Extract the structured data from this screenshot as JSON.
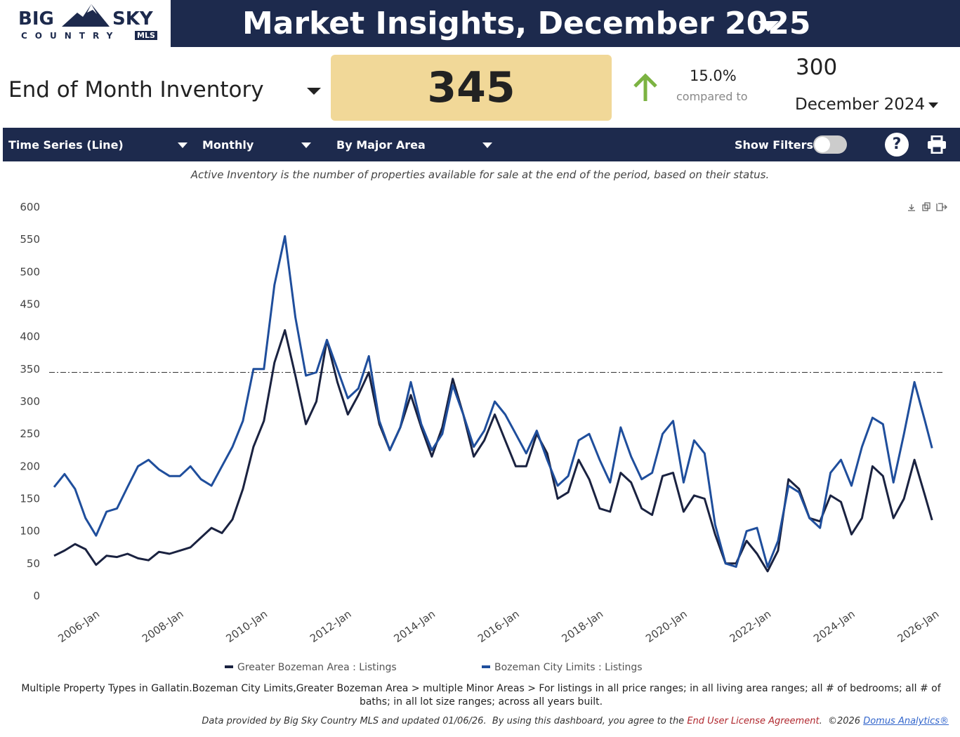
{
  "header": {
    "logo": {
      "big": "BIG",
      "sky": "SKY",
      "country": "COUNTRY",
      "mls": "MLS"
    },
    "title": "Market Insights, December 2025"
  },
  "kpi": {
    "metric": "End of Month Inventory",
    "value": 345,
    "change": "15.0%",
    "compared_to": "compared to",
    "previous_value": 300,
    "previous_period": "December 2024"
  },
  "toolbar": {
    "chart_type": "Time Series (Line)",
    "interval": "Monthly",
    "grouping": "By Major Area",
    "show_filters": "Show Filters:"
  },
  "description": "Active Inventory is the number of properties available for sale at the end of the period, based on their status.",
  "chart_data": {
    "type": "line",
    "x": [
      2005,
      2005.25,
      2005.5,
      2005.75,
      2006,
      2006.25,
      2006.5,
      2006.75,
      2007,
      2007.25,
      2007.5,
      2007.75,
      2008,
      2008.25,
      2008.5,
      2008.75,
      2009,
      2009.25,
      2009.5,
      2009.75,
      2010,
      2010.25,
      2010.5,
      2010.75,
      2011,
      2011.25,
      2011.5,
      2011.75,
      2012,
      2012.25,
      2012.5,
      2012.75,
      2013,
      2013.25,
      2013.5,
      2013.75,
      2014,
      2014.25,
      2014.5,
      2014.75,
      2015,
      2015.25,
      2015.5,
      2015.75,
      2016,
      2016.25,
      2016.5,
      2016.75,
      2017,
      2017.25,
      2017.5,
      2017.75,
      2018,
      2018.25,
      2018.5,
      2018.75,
      2019,
      2019.25,
      2019.5,
      2019.75,
      2020,
      2020.25,
      2020.5,
      2020.75,
      2021,
      2021.25,
      2021.5,
      2021.75,
      2022,
      2022.25,
      2022.5,
      2022.75,
      2023,
      2023.25,
      2023.5,
      2023.75,
      2024,
      2024.25,
      2024.5,
      2024.75,
      2025,
      2025.25,
      2025.5,
      2025.75,
      2025.92
    ],
    "series": [
      {
        "name": "Greater Bozeman Area : Listings",
        "color": "#1a2240",
        "values": [
          62,
          70,
          80,
          72,
          48,
          62,
          60,
          65,
          58,
          55,
          68,
          65,
          70,
          75,
          90,
          105,
          97,
          118,
          165,
          230,
          270,
          360,
          410,
          340,
          265,
          300,
          395,
          330,
          280,
          310,
          345,
          265,
          225,
          260,
          310,
          260,
          215,
          260,
          335,
          280,
          215,
          240,
          280,
          240,
          200,
          200,
          250,
          220,
          150,
          160,
          210,
          180,
          135,
          130,
          190,
          175,
          135,
          125,
          185,
          190,
          130,
          155,
          150,
          95,
          50,
          50,
          85,
          65,
          38,
          70,
          180,
          165,
          120,
          115,
          155,
          145,
          95,
          120,
          200,
          185,
          120,
          150,
          210,
          155,
          117
        ]
      },
      {
        "name": "Bozeman City Limits : Listings",
        "color": "#1f4e9c",
        "values": [
          168,
          188,
          165,
          120,
          93,
          130,
          135,
          168,
          200,
          210,
          195,
          185,
          185,
          200,
          180,
          170,
          200,
          230,
          270,
          350,
          350,
          480,
          555,
          430,
          340,
          345,
          395,
          350,
          305,
          320,
          370,
          270,
          225,
          260,
          330,
          265,
          225,
          250,
          325,
          280,
          230,
          255,
          300,
          280,
          250,
          220,
          255,
          210,
          170,
          185,
          240,
          250,
          210,
          175,
          260,
          215,
          180,
          190,
          250,
          270,
          175,
          240,
          220,
          110,
          50,
          45,
          100,
          105,
          45,
          85,
          170,
          160,
          120,
          105,
          190,
          210,
          170,
          230,
          275,
          265,
          175,
          250,
          330,
          270,
          228
        ]
      }
    ],
    "xlim": [
      2005,
      2026
    ],
    "xticks": [
      {
        "value": 2006,
        "label": "2006-Jan"
      },
      {
        "value": 2008,
        "label": "2008-Jan"
      },
      {
        "value": 2010,
        "label": "2010-Jan"
      },
      {
        "value": 2012,
        "label": "2012-Jan"
      },
      {
        "value": 2014,
        "label": "2014-Jan"
      },
      {
        "value": 2016,
        "label": "2016-Jan"
      },
      {
        "value": 2018,
        "label": "2018-Jan"
      },
      {
        "value": 2020,
        "label": "2020-Jan"
      },
      {
        "value": 2022,
        "label": "2022-Jan"
      },
      {
        "value": 2024,
        "label": "2024-Jan"
      },
      {
        "value": 2026,
        "label": "2026-Jan"
      }
    ],
    "ylim": [
      0,
      600
    ],
    "yticks": [
      0,
      50,
      100,
      150,
      200,
      250,
      300,
      350,
      400,
      450,
      500,
      550,
      600
    ],
    "grid": false,
    "legend": "bottom"
  },
  "footnote": "Multiple Property Types in Gallatin.Bozeman City Limits,Greater Bozeman Area > multiple Minor Areas > For listings in all price ranges; in all living area ranges; all # of bedrooms; all # of baths; in all lot size ranges; across all years built.",
  "credits": {
    "text": "Data provided by Big Sky Country MLS and updated 01/06/26.  By using this dashboard, you agree to the ",
    "license": "End User License Agreement",
    "middle": ".  ©2026 ",
    "company": "Domus Analytics®"
  }
}
